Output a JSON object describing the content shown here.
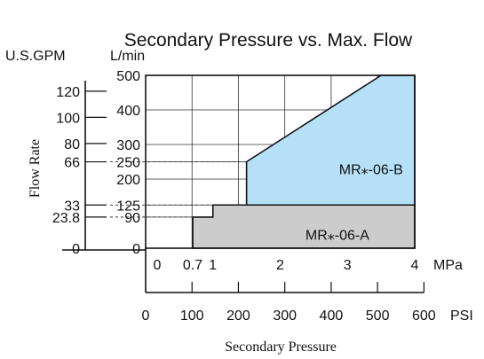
{
  "chart_data": {
    "type": "area",
    "title": "Secondary Pressure vs. Max. Flow",
    "ylabel": "Flow Rate",
    "xlabel": "Secondary Pressure",
    "y_units": {
      "primary": "L/min",
      "secondary": "U.S.GPM"
    },
    "x_units": {
      "primary": "MPa",
      "secondary": "PSI"
    },
    "ylim": [
      0,
      500
    ],
    "xlim": [
      0,
      4
    ],
    "grid": true,
    "y_ticks_lmin": [
      "0",
      "90",
      "125",
      "200",
      "250",
      "300",
      "400",
      "500"
    ],
    "y_ticks_gpm": [
      "0",
      "23.8",
      "33",
      "66",
      "80",
      "100",
      "120"
    ],
    "x_ticks_mpa": [
      "0",
      "0.7",
      "1",
      "2",
      "3",
      "4"
    ],
    "x_ticks_psi": [
      "0",
      "100",
      "200",
      "300",
      "400",
      "500",
      "600"
    ],
    "series": [
      {
        "name": "MR⁎-06-A",
        "color": "#cccccc",
        "points": [
          [
            0.7,
            0
          ],
          [
            0.7,
            90
          ],
          [
            1.0,
            90
          ],
          [
            1.0,
            125
          ],
          [
            4.0,
            125
          ],
          [
            4.0,
            0
          ]
        ]
      },
      {
        "name": "MR⁎-06-B",
        "color": "#b6e0f7",
        "points": [
          [
            1.5,
            125
          ],
          [
            1.5,
            250
          ],
          [
            3.5,
            500
          ],
          [
            4.0,
            500
          ],
          [
            4.0,
            125
          ]
        ]
      }
    ]
  }
}
